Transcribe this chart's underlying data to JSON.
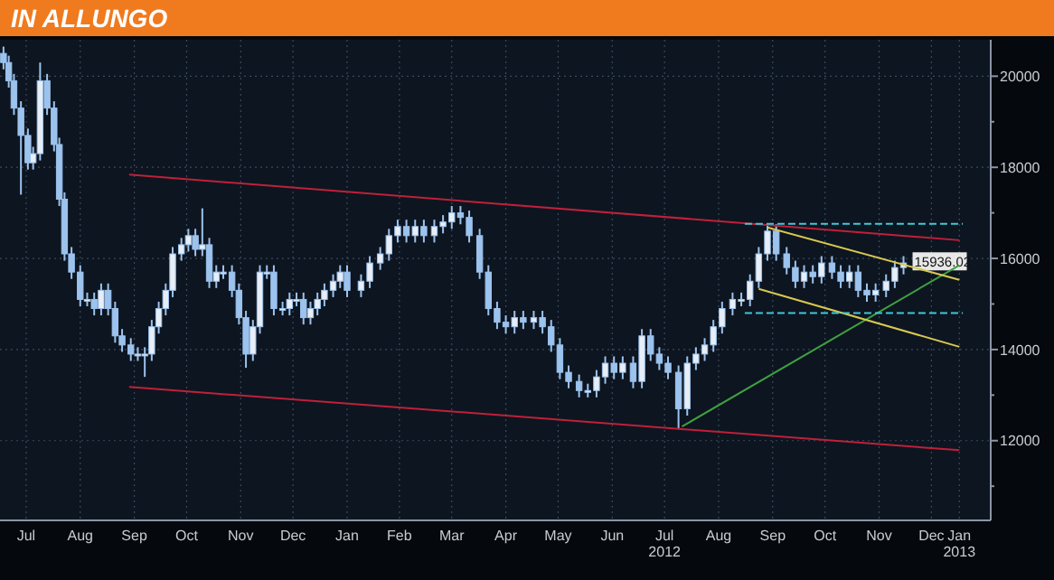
{
  "chart_data": {
    "type": "candlestick",
    "title": "IN ALLUNGO",
    "xlim": [
      "2011-07-01",
      "2013-01-19"
    ],
    "ylim": [
      10250,
      20800
    ],
    "xticks": [
      {
        "value": "2011-07-16",
        "label": "Jul"
      },
      {
        "value": "2011-08-16",
        "label": "Aug"
      },
      {
        "value": "2011-09-16",
        "label": "Sep"
      },
      {
        "value": "2011-10-16",
        "label": "Oct"
      },
      {
        "value": "2011-11-16",
        "label": "Nov"
      },
      {
        "value": "2011-12-16",
        "label": "Dec"
      },
      {
        "value": "2012-01-16",
        "label": "Jan"
      },
      {
        "value": "2012-02-15",
        "label": "Feb"
      },
      {
        "value": "2012-03-16",
        "label": "Mar"
      },
      {
        "value": "2012-04-16",
        "label": "Apr"
      },
      {
        "value": "2012-05-16",
        "label": "May"
      },
      {
        "value": "2012-06-16",
        "label": "Jun"
      },
      {
        "value": "2012-07-16",
        "label": "Jul 2012"
      },
      {
        "value": "2012-08-16",
        "label": "Aug"
      },
      {
        "value": "2012-09-16",
        "label": "Sep"
      },
      {
        "value": "2012-10-16",
        "label": "Oct"
      },
      {
        "value": "2012-11-16",
        "label": "Nov"
      },
      {
        "value": "2012-12-16",
        "label": "Dec"
      },
      {
        "value": "2013-01-01",
        "label": "Jan 2013"
      }
    ],
    "yticks": [
      {
        "value": 11000,
        "label": null
      },
      12000,
      {
        "value": 13000,
        "label": null
      },
      14000,
      {
        "value": 15000,
        "label": null
      },
      16000,
      {
        "value": 17000,
        "label": null
      },
      18000,
      {
        "value": 19000,
        "label": null
      },
      20000
    ],
    "grid": true,
    "annotations": [
      {
        "text": "15936.02",
        "x": "2012-11-30",
        "y": 15936.02
      }
    ],
    "series": [
      {
        "color": "#9cc3ee",
        "x": [
          "2011-07-03",
          "2011-07-06",
          "2011-07-09",
          "2011-07-13",
          "2011-07-17",
          "2011-07-20",
          "2011-07-24",
          "2011-07-28",
          "2011-08-01",
          "2011-08-04",
          "2011-08-07",
          "2011-08-11",
          "2011-08-16",
          "2011-08-20",
          "2011-08-24",
          "2011-08-28",
          "2011-09-01",
          "2011-09-05",
          "2011-09-09",
          "2011-09-14",
          "2011-09-18",
          "2011-09-22",
          "2011-09-26",
          "2011-09-30",
          "2011-10-04",
          "2011-10-08",
          "2011-10-13",
          "2011-10-17",
          "2011-10-21",
          "2011-10-25",
          "2011-10-29",
          "2011-11-02",
          "2011-11-06",
          "2011-11-11",
          "2011-11-15",
          "2011-11-19",
          "2011-11-23",
          "2011-11-27",
          "2011-12-01",
          "2011-12-05",
          "2011-12-10",
          "2011-12-14",
          "2011-12-18",
          "2011-12-22",
          "2011-12-26",
          "2011-12-30",
          "2012-01-03",
          "2012-01-08",
          "2012-01-12",
          "2012-01-16",
          "2012-01-24",
          "2012-01-29",
          "2012-02-04",
          "2012-02-09",
          "2012-02-14",
          "2012-02-19",
          "2012-02-24",
          "2012-02-29",
          "2012-03-06",
          "2012-03-11",
          "2012-03-16",
          "2012-03-21",
          "2012-03-26",
          "2012-04-01",
          "2012-04-06",
          "2012-04-11",
          "2012-04-16",
          "2012-04-21",
          "2012-04-26",
          "2012-05-02",
          "2012-05-07",
          "2012-05-12",
          "2012-05-17",
          "2012-05-22",
          "2012-05-28",
          "2012-06-02",
          "2012-06-07",
          "2012-06-12",
          "2012-06-17",
          "2012-06-22",
          "2012-06-28",
          "2012-07-03",
          "2012-07-08",
          "2012-07-13",
          "2012-07-18",
          "2012-07-24",
          "2012-07-29",
          "2012-08-03",
          "2012-08-08",
          "2012-08-13",
          "2012-08-18",
          "2012-08-24",
          "2012-08-29",
          "2012-09-03",
          "2012-09-08",
          "2012-09-13",
          "2012-09-18",
          "2012-09-24",
          "2012-09-29",
          "2012-10-04",
          "2012-10-09",
          "2012-10-14",
          "2012-10-20",
          "2012-10-25",
          "2012-10-30",
          "2012-11-04",
          "2012-11-09",
          "2012-11-14",
          "2012-11-20",
          "2012-11-25",
          "2012-11-30"
        ],
        "ohlc": [
          [
            20500,
            20650,
            20150,
            20300
          ],
          [
            20300,
            20450,
            19750,
            19900
          ],
          [
            19900,
            20050,
            19150,
            19300
          ],
          [
            19300,
            19450,
            17400,
            18700
          ],
          [
            18700,
            18850,
            17950,
            18100
          ],
          [
            18100,
            18450,
            17950,
            18300
          ],
          [
            18300,
            20300,
            18150,
            19900
          ],
          [
            19900,
            20050,
            19150,
            19300
          ],
          [
            19300,
            19450,
            18350,
            18500
          ],
          [
            18500,
            18650,
            17150,
            17300
          ],
          [
            17300,
            17450,
            15950,
            16100
          ],
          [
            16100,
            16250,
            15550,
            15700
          ],
          [
            15700,
            15850,
            14950,
            15100
          ],
          [
            15100,
            15250,
            14950,
            15100
          ],
          [
            15100,
            15250,
            14750,
            14900
          ],
          [
            14900,
            15450,
            14750,
            15300
          ],
          [
            15300,
            15450,
            14750,
            14900
          ],
          [
            14900,
            15050,
            14150,
            14300
          ],
          [
            14300,
            14450,
            13950,
            14100
          ],
          [
            14100,
            14250,
            13750,
            13900
          ],
          [
            13900,
            14050,
            13750,
            13900
          ],
          [
            13900,
            14050,
            13400,
            13900
          ],
          [
            13900,
            14650,
            13750,
            14500
          ],
          [
            14500,
            15050,
            14350,
            14900
          ],
          [
            14900,
            15450,
            14750,
            15300
          ],
          [
            15300,
            16250,
            15150,
            16100
          ],
          [
            16100,
            16450,
            15950,
            16300
          ],
          [
            16300,
            16650,
            16150,
            16500
          ],
          [
            16500,
            16650,
            16050,
            16200
          ],
          [
            16200,
            17100,
            16050,
            16300
          ],
          [
            16300,
            16450,
            15350,
            15500
          ],
          [
            15500,
            15850,
            15350,
            15700
          ],
          [
            15700,
            15850,
            15550,
            15700
          ],
          [
            15700,
            15850,
            15150,
            15300
          ],
          [
            15300,
            15450,
            14550,
            14700
          ],
          [
            14700,
            14850,
            13600,
            13900
          ],
          [
            13900,
            14650,
            13750,
            14500
          ],
          [
            14500,
            15850,
            14350,
            15700
          ],
          [
            15700,
            15850,
            15550,
            15700
          ],
          [
            15700,
            15850,
            14750,
            14900
          ],
          [
            14900,
            15050,
            14750,
            14900
          ],
          [
            14900,
            15250,
            14750,
            15100
          ],
          [
            15100,
            15250,
            14950,
            15100
          ],
          [
            15100,
            15250,
            14550,
            14700
          ],
          [
            14700,
            15050,
            14550,
            14900
          ],
          [
            14900,
            15250,
            14750,
            15100
          ],
          [
            15100,
            15450,
            14950,
            15300
          ],
          [
            15300,
            15650,
            15150,
            15500
          ],
          [
            15500,
            15850,
            15350,
            15700
          ],
          [
            15700,
            15850,
            15150,
            15300
          ],
          [
            15300,
            15650,
            15150,
            15500
          ],
          [
            15500,
            16050,
            15350,
            15900
          ],
          [
            15900,
            16250,
            15750,
            16100
          ],
          [
            16100,
            16650,
            15950,
            16500
          ],
          [
            16500,
            16850,
            16350,
            16700
          ],
          [
            16700,
            16850,
            16350,
            16500
          ],
          [
            16500,
            16850,
            16350,
            16700
          ],
          [
            16700,
            16850,
            16350,
            16500
          ],
          [
            16500,
            16850,
            16350,
            16700
          ],
          [
            16700,
            16950,
            16550,
            16800
          ],
          [
            16800,
            17150,
            16650,
            17000
          ],
          [
            17000,
            17150,
            16750,
            16900
          ],
          [
            16900,
            17050,
            16350,
            16500
          ],
          [
            16500,
            16650,
            15550,
            15700
          ],
          [
            15700,
            15850,
            14750,
            14900
          ],
          [
            14900,
            15050,
            14450,
            14600
          ],
          [
            14600,
            14750,
            14350,
            14500
          ],
          [
            14500,
            14850,
            14350,
            14700
          ],
          [
            14700,
            14850,
            14450,
            14600
          ],
          [
            14600,
            14850,
            14450,
            14700
          ],
          [
            14700,
            14850,
            14350,
            14500
          ],
          [
            14500,
            14650,
            13950,
            14100
          ],
          [
            14100,
            14250,
            13350,
            13500
          ],
          [
            13500,
            13650,
            13150,
            13300
          ],
          [
            13300,
            13450,
            12950,
            13100
          ],
          [
            13100,
            13250,
            12950,
            13100
          ],
          [
            13100,
            13550,
            12950,
            13400
          ],
          [
            13400,
            13850,
            13250,
            13700
          ],
          [
            13700,
            13850,
            13350,
            13500
          ],
          [
            13500,
            13850,
            13350,
            13700
          ],
          [
            13700,
            13850,
            13150,
            13300
          ],
          [
            13300,
            14450,
            13150,
            14300
          ],
          [
            14300,
            14450,
            13750,
            13900
          ],
          [
            13900,
            14050,
            13550,
            13700
          ],
          [
            13700,
            13850,
            13350,
            13500
          ],
          [
            13500,
            13650,
            12250,
            12700
          ],
          [
            12700,
            13850,
            12550,
            13700
          ],
          [
            13700,
            14050,
            13550,
            13900
          ],
          [
            13900,
            14250,
            13750,
            14100
          ],
          [
            14100,
            14650,
            13950,
            14500
          ],
          [
            14500,
            15050,
            14350,
            14900
          ],
          [
            14900,
            15250,
            14750,
            15100
          ],
          [
            15100,
            15250,
            14950,
            15100
          ],
          [
            15100,
            15650,
            14950,
            15500
          ],
          [
            15500,
            16250,
            15350,
            16100
          ],
          [
            16100,
            16760,
            15950,
            16600
          ],
          [
            16600,
            16750,
            15950,
            16100
          ],
          [
            16100,
            16250,
            15650,
            15800
          ],
          [
            15800,
            15950,
            15350,
            15500
          ],
          [
            15500,
            15850,
            15350,
            15700
          ],
          [
            15700,
            15850,
            15450,
            15600
          ],
          [
            15600,
            16050,
            15450,
            15900
          ],
          [
            15900,
            16050,
            15550,
            15700
          ],
          [
            15700,
            15850,
            15350,
            15500
          ],
          [
            15500,
            15850,
            15350,
            15700
          ],
          [
            15700,
            15850,
            15150,
            15300
          ],
          [
            15300,
            15450,
            15050,
            15200
          ],
          [
            15200,
            15450,
            15050,
            15300
          ],
          [
            15300,
            15650,
            15150,
            15500
          ],
          [
            15500,
            15950,
            15350,
            15800
          ],
          [
            15800,
            16050,
            15650,
            15900
          ]
        ]
      },
      {
        "type": "line",
        "color": "#c0203a",
        "x": [
          "2011-09-13",
          "2013-01-01"
        ],
        "values": [
          17840,
          16400
        ]
      },
      {
        "type": "line",
        "color": "#c0203a",
        "x": [
          "2011-09-13",
          "2013-01-01"
        ],
        "values": [
          13180,
          11790
        ]
      },
      {
        "type": "line",
        "color": "#3fa040",
        "x": [
          "2012-07-26",
          "2013-01-01"
        ],
        "values": [
          12310,
          15850
        ]
      },
      {
        "type": "line",
        "color": "#d8c850",
        "x": [
          "2012-09-13",
          "2013-01-01"
        ],
        "values": [
          16680,
          15530
        ]
      },
      {
        "type": "line",
        "color": "#d8c850",
        "x": [
          "2012-09-08",
          "2013-01-01"
        ],
        "values": [
          15330,
          14060
        ]
      },
      {
        "type": "line",
        "color": "#40c8d8",
        "line_style": "dashed",
        "x": [
          "2012-08-31",
          "2013-01-03"
        ],
        "values": [
          16760,
          16760
        ]
      },
      {
        "type": "line",
        "color": "#40c8d8",
        "line_style": "dashed",
        "x": [
          "2012-08-31",
          "2013-01-03"
        ],
        "values": [
          14800,
          14800
        ]
      }
    ]
  }
}
